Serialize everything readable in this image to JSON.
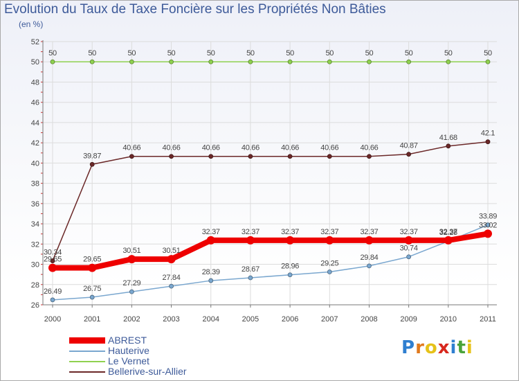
{
  "chart_data": {
    "type": "line",
    "title": "Evolution du Taux de Taxe Foncière sur les Propriétés Non Bâties",
    "subtitle": "(en %)",
    "xlabel": "",
    "ylabel": "",
    "ylim": [
      26,
      52
    ],
    "ytick_step": 2,
    "grid": true,
    "categories": [
      "2000",
      "2001",
      "2002",
      "2003",
      "2004",
      "2005",
      "2006",
      "2007",
      "2008",
      "2009",
      "2010",
      "2011"
    ],
    "series": [
      {
        "name": "Le Vernet",
        "color": "#8fd14f",
        "width": "thin",
        "values": [
          50,
          50,
          50,
          50,
          50,
          50,
          50,
          50,
          50,
          50,
          50,
          50
        ],
        "labels": [
          "50",
          "50",
          "50",
          "50",
          "50",
          "50",
          "50",
          "50",
          "50",
          "50",
          "50",
          "50"
        ]
      },
      {
        "name": "Bellerive-sur-Allier",
        "color": "#6b2828",
        "width": "thin",
        "values": [
          30.34,
          39.87,
          40.66,
          40.66,
          40.66,
          40.66,
          40.66,
          40.66,
          40.66,
          40.87,
          41.68,
          42.1
        ],
        "labels": [
          "30.34",
          "39.87",
          "40.66",
          "40.66",
          "40.66",
          "40.66",
          "40.66",
          "40.66",
          "40.66",
          "40.87",
          "41.68",
          "42.1"
        ]
      },
      {
        "name": "Hauterive",
        "color": "#7aa7cf",
        "width": "thin",
        "values": [
          26.49,
          26.75,
          27.29,
          27.84,
          28.39,
          28.67,
          28.96,
          29.25,
          29.84,
          30.74,
          32.28,
          33.89
        ],
        "labels": [
          "26.49",
          "26.75",
          "27.29",
          "27.84",
          "28.39",
          "28.67",
          "28.96",
          "29.25",
          "29.84",
          "30.74",
          "32.28",
          "33.89"
        ]
      },
      {
        "name": "ABREST",
        "color": "#ee0000",
        "width": "thick",
        "values": [
          29.65,
          29.65,
          30.51,
          30.51,
          32.37,
          32.37,
          32.37,
          32.37,
          32.37,
          32.37,
          32.37,
          33.02
        ],
        "labels": [
          "29.65",
          "29.65",
          "30.51",
          "30.51",
          "32.37",
          "32.37",
          "32.37",
          "32.37",
          "32.37",
          "32.37",
          "32.37",
          "33.02"
        ]
      }
    ],
    "legend": [
      "ABREST",
      "Hauterive",
      "Le Vernet",
      "Bellerive-sur-Allier"
    ],
    "legend_position": "bottom-left"
  },
  "logo": {
    "letters": [
      "P",
      "r",
      "o",
      "x",
      "i",
      "t",
      "i"
    ]
  }
}
